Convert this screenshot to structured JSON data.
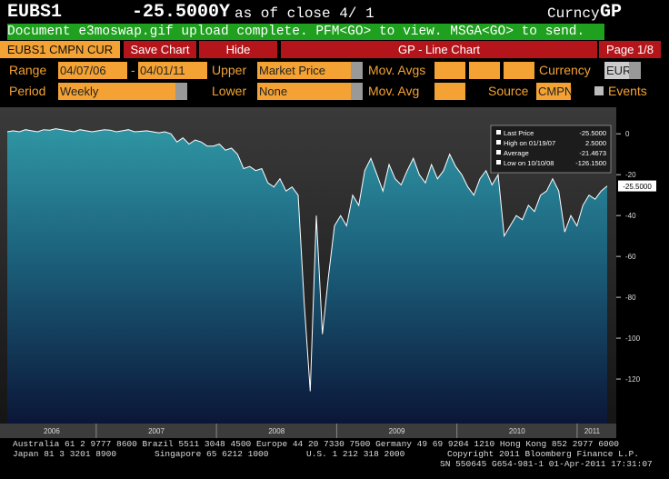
{
  "header": {
    "ticker": "EUBS1",
    "price": "-25.5000Y",
    "as_of": "as of close  4/ 1",
    "security": "Curncy",
    "function": "GP"
  },
  "status": "Document e3moswap.gif upload complete. PFM<GO> to view. MSGA<GO> to send.",
  "toolbar": {
    "security": "EUBS1 CMPN CUR",
    "save": "Save Chart",
    "hide": "Hide",
    "title": "GP - Line Chart",
    "page": "Page 1/8"
  },
  "form": {
    "range_label": "Range",
    "range_start": "04/07/06",
    "range_sep": "-",
    "range_end": "04/01/11",
    "upper_label": "Upper",
    "upper": "Market Price",
    "mov_avgs_label": "Mov. Avgs",
    "currency_label": "Currency",
    "currency": "EUR",
    "period_label": "Period",
    "period": "Weekly",
    "lower_label": "Lower",
    "lower": "None",
    "mov_avg_label": "Mov. Avg",
    "source_label": "Source",
    "source": "CMPN",
    "events_label": "Events"
  },
  "chart_data": {
    "type": "line",
    "color": "#ffffff",
    "values": [
      1,
      1.5,
      1,
      2,
      1.5,
      1,
      2,
      1.8,
      2.5,
      2,
      1.5,
      1,
      2,
      1.5,
      1,
      1.5,
      2,
      1.8,
      1,
      1.5,
      2,
      1,
      1.2,
      1.5,
      1,
      0.5,
      1,
      0,
      -4,
      -2,
      -5,
      -3,
      -4,
      -6,
      -6,
      -5,
      -8,
      -7,
      -10,
      -17,
      -16,
      -18,
      -17,
      -24,
      -26,
      -22,
      -28,
      -26,
      -30,
      -83,
      -126,
      -40,
      -98,
      -70,
      -45,
      -40,
      -45,
      -30,
      -35,
      -18,
      -12,
      -20,
      -28,
      -15,
      -22,
      -25,
      -18,
      -12,
      -20,
      -24,
      -15,
      -22,
      -18,
      -10,
      -16,
      -20,
      -26,
      -30,
      -22,
      -18,
      -25,
      -20,
      -50,
      -45,
      -40,
      -42,
      -35,
      -38,
      -30,
      -28,
      -22,
      -28,
      -48,
      -40,
      -45,
      -35,
      -30,
      -32,
      -28,
      -25.5
    ],
    "xlim": [
      2006.26,
      2011.25
    ],
    "xticks": [
      2006,
      2007,
      2008,
      2009,
      2010,
      2011
    ],
    "ylim": [
      -140,
      13
    ],
    "yticks": [
      0,
      -20,
      -40,
      -60,
      -80,
      -100,
      -120
    ],
    "last_label": "-25.5000",
    "stats": [
      {
        "label": "Last Price",
        "value": "-25.5000"
      },
      {
        "label": "High on 01/19/07",
        "value": "2.5000"
      },
      {
        "label": "Average",
        "value": "-21.4673"
      },
      {
        "label": "Low on 10/10/08",
        "value": "-126.1500"
      }
    ]
  },
  "footer": [
    "Australia 61 2 9777 8600 Brazil 5511 3048 4500 Europe 44 20 7330 7500 Germany 49 69 9204 1210 Hong Kong 852 2977 6000",
    "Japan 81 3 3201 8900",
    "Singapore 65 6212 1000",
    "U.S. 1 212 318 2000",
    "Copyright 2011 Bloomberg Finance L.P.",
    "SN 550645 G654-981-1 01-Apr-2011 17:31:07"
  ]
}
